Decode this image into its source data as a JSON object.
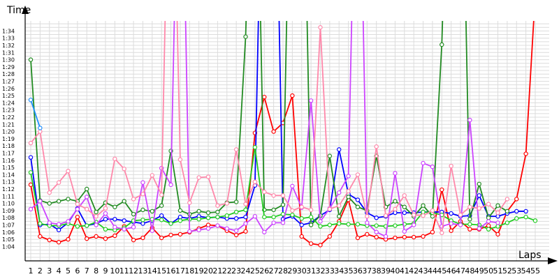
{
  "chart_data": {
    "type": "line",
    "xlabel": "Laps",
    "ylabel": "Time",
    "grid": true,
    "legend": "none",
    "x": [
      1,
      2,
      3,
      4,
      5,
      6,
      7,
      8,
      9,
      10,
      11,
      12,
      13,
      14,
      15,
      16,
      17,
      18,
      19,
      20,
      21,
      22,
      23,
      24,
      25,
      26,
      27,
      28,
      29,
      30,
      31,
      32,
      33,
      34,
      35,
      36,
      37,
      38,
      39,
      40,
      41,
      42,
      43,
      44,
      45,
      46,
      47,
      48,
      49,
      50,
      51,
      52,
      53,
      54,
      55
    ],
    "x_tick_labels": [
      "1",
      "2",
      "3",
      "4",
      "5",
      "6",
      "7",
      "8",
      "9",
      "10",
      "11",
      "12",
      "13",
      "14",
      "15",
      "16",
      "17",
      "18",
      "19",
      "20",
      "21",
      "22",
      "23",
      "24",
      "25",
      "26",
      "27",
      "28",
      "29",
      "30",
      "31",
      "32",
      "33",
      "34",
      "35",
      "36",
      "37",
      "38",
      "39",
      "40",
      "41",
      "42",
      "43",
      "44",
      "45",
      "46",
      "47",
      "48",
      "49",
      "50",
      "51",
      "52",
      "53",
      "54",
      "55"
    ],
    "y_tick_labels": [
      "1:04",
      "1:05",
      "1:06",
      "1:07",
      "1:08",
      "1:09",
      "1:10",
      "1:11",
      "1:12",
      "1:13",
      "1:14",
      "1:15",
      "1:16",
      "1:17",
      "1:18",
      "1:19",
      "1:20",
      "1:21",
      "1:22",
      "1:23",
      "1:24",
      "1:25",
      "1:26",
      "1:27",
      "1:28",
      "1:29",
      "1:30",
      "1:31",
      "1:32",
      "1:33",
      "1:34"
    ],
    "y_unit": "seconds",
    "ylim": [
      62,
      100
    ],
    "series": [
      {
        "color": "#ff0000",
        "values": [
          72.6,
          65.4,
          64.9,
          64.6,
          65.0,
          68.1,
          65.1,
          65.4,
          65.1,
          65.5,
          66.8,
          64.9,
          65.2,
          66.6,
          65.2,
          65.6,
          65.7,
          66.0,
          66.5,
          67.0,
          66.9,
          66.2,
          65.6,
          66.1,
          79.8,
          84.8,
          80.0,
          81.2,
          85.0,
          65.4,
          64.4,
          64.2,
          65.4,
          67.5,
          70.5,
          65.2,
          65.7,
          65.3,
          65.0,
          65.2,
          65.3,
          65.3,
          65.4,
          66.0,
          71.9,
          66.2,
          67.5,
          66.4,
          66.4,
          66.9,
          65.7,
          68.9,
          70.6,
          76.9,
          99.0
        ]
      },
      {
        "color": "#0000ff",
        "values": [
          76.4,
          67.0,
          67.1,
          66.3,
          67.3,
          69.3,
          66.9,
          67.2,
          67.8,
          67.8,
          67.6,
          67.4,
          67.2,
          67.6,
          68.3,
          67.2,
          68.1,
          67.9,
          68.2,
          68.0,
          68.1,
          67.9,
          67.9,
          68.1,
          72.5,
          135.0,
          135.0,
          67.8,
          68.2,
          67.0,
          67.3,
          68.3,
          69.1,
          77.5,
          71.3,
          70.5,
          68.7,
          68.0,
          68.2,
          68.7,
          68.7,
          68.7,
          68.8,
          68.8,
          68.8,
          68.6,
          68.2,
          68.3,
          71.1,
          68.2,
          68.2,
          68.6,
          68.9,
          68.9,
          null
        ]
      },
      {
        "color": "#228b22",
        "values": [
          90.0,
          70.4,
          70.0,
          70.3,
          70.6,
          70.3,
          72.0,
          68.8,
          70.1,
          69.5,
          70.3,
          68.5,
          69.1,
          68.9,
          69.7,
          77.3,
          69.0,
          68.5,
          68.9,
          68.7,
          68.8,
          70.1,
          70.2,
          93.2,
          135.0,
          69.1,
          69.1,
          69.8,
          135.0,
          135.0,
          67.0,
          68.3,
          76.6,
          68.2,
          70.9,
          69.5,
          69.0,
          76.6,
          69.5,
          70.3,
          69.5,
          68.2,
          69.7,
          68.2,
          92.1,
          135.0,
          135.0,
          67.8,
          72.7,
          68.0,
          69.7,
          68.9,
          null,
          null,
          null
        ]
      },
      {
        "color": "#22cc22",
        "values": [
          74.3,
          67.2,
          66.9,
          66.9,
          67.2,
          66.8,
          66.9,
          67.4,
          66.4,
          66.3,
          66.6,
          67.6,
          67.7,
          67.8,
          67.7,
          67.2,
          67.6,
          67.8,
          67.8,
          68.0,
          68.1,
          68.3,
          68.8,
          69.1,
          77.8,
          68.1,
          68.1,
          68.5,
          68.4,
          67.9,
          68.1,
          66.8,
          67.0,
          67.2,
          67.1,
          67.1,
          66.9,
          66.9,
          66.8,
          66.9,
          67.1,
          67.2,
          68.8,
          68.7,
          68.4,
          67.6,
          67.1,
          67.1,
          67.0,
          66.4,
          66.8,
          67.3,
          67.9,
          68.1,
          67.6
        ]
      },
      {
        "color": "#cc44ff",
        "values": [
          69.2,
          70.3,
          67.3,
          67.1,
          67.5,
          69.2,
          70.9,
          67.0,
          68.6,
          66.7,
          66.4,
          66.7,
          72.9,
          66.2,
          74.9,
          72.6,
          135.0,
          66.1,
          66.3,
          66.5,
          66.9,
          66.5,
          66.2,
          67.2,
          68.2,
          66.0,
          67.3,
          67.3,
          72.4,
          69.4,
          84.3,
          67.5,
          69.3,
          71.5,
          73.8,
          135.0,
          67.3,
          66.0,
          65.4,
          74.2,
          66.1,
          67.0,
          75.6,
          75.1,
          66.8,
          67.2,
          67.0,
          81.6,
          66.5,
          67.5,
          67.3,
          null,
          null,
          null,
          null
        ]
      },
      {
        "color": "#ff88aa",
        "values": [
          78.4,
          80.0,
          71.5,
          72.9,
          74.5,
          69.9,
          69.2,
          68.2,
          69.3,
          76.2,
          74.8,
          70.6,
          71.3,
          73.9,
          71.2,
          135.0,
          76.1,
          70.1,
          73.6,
          73.7,
          69.7,
          70.0,
          77.5,
          69.9,
          73.0,
          71.6,
          71.1,
          71.1,
          69.0,
          69.5,
          69.1,
          94.5,
          69.2,
          69.7,
          71.7,
          74.0,
          68.2,
          77.9,
          68.3,
          69.2,
          71.1,
          68.4,
          68.3,
          69.0,
          65.9,
          75.2,
          68.4,
          69.5,
          69.3,
          69.9,
          68.7,
          70.6,
          null,
          null,
          null
        ]
      },
      {
        "color": "#1e90ff",
        "values": [
          84.4,
          80.5,
          null,
          null,
          null,
          null,
          null,
          null,
          null,
          null,
          null,
          null,
          null,
          null,
          null,
          null,
          null,
          null,
          null,
          null,
          null,
          null,
          null,
          null,
          null,
          null,
          null,
          null,
          null,
          null,
          null,
          null,
          null,
          null,
          null,
          null,
          null,
          null,
          null,
          null,
          null,
          null,
          null,
          null,
          null,
          null,
          null,
          null,
          null,
          null,
          null,
          null,
          null,
          null,
          null
        ]
      }
    ]
  }
}
